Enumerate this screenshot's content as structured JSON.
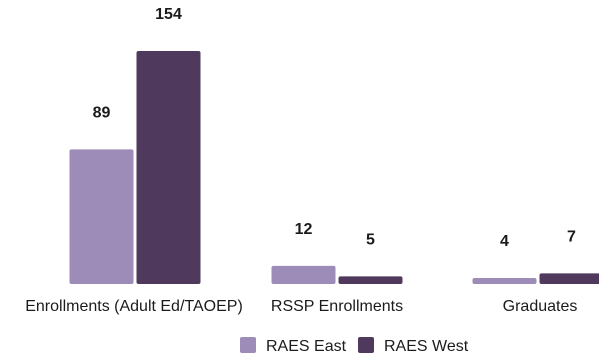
{
  "chart_data": {
    "type": "bar",
    "categories": [
      "Enrollments (Adult Ed/TAOEP)",
      "RSSP Enrollments",
      "Graduates"
    ],
    "series": [
      {
        "name": "RAES East",
        "values": [
          89,
          12,
          4
        ],
        "color": "#9e8cb8"
      },
      {
        "name": "RAES West",
        "values": [
          154,
          5,
          7
        ],
        "color": "#4f3a5e"
      }
    ],
    "title": "",
    "xlabel": "",
    "ylabel": "",
    "ylim": [
      0,
      154
    ],
    "grid": false,
    "legend": "bottom-center",
    "data_labels": true
  }
}
